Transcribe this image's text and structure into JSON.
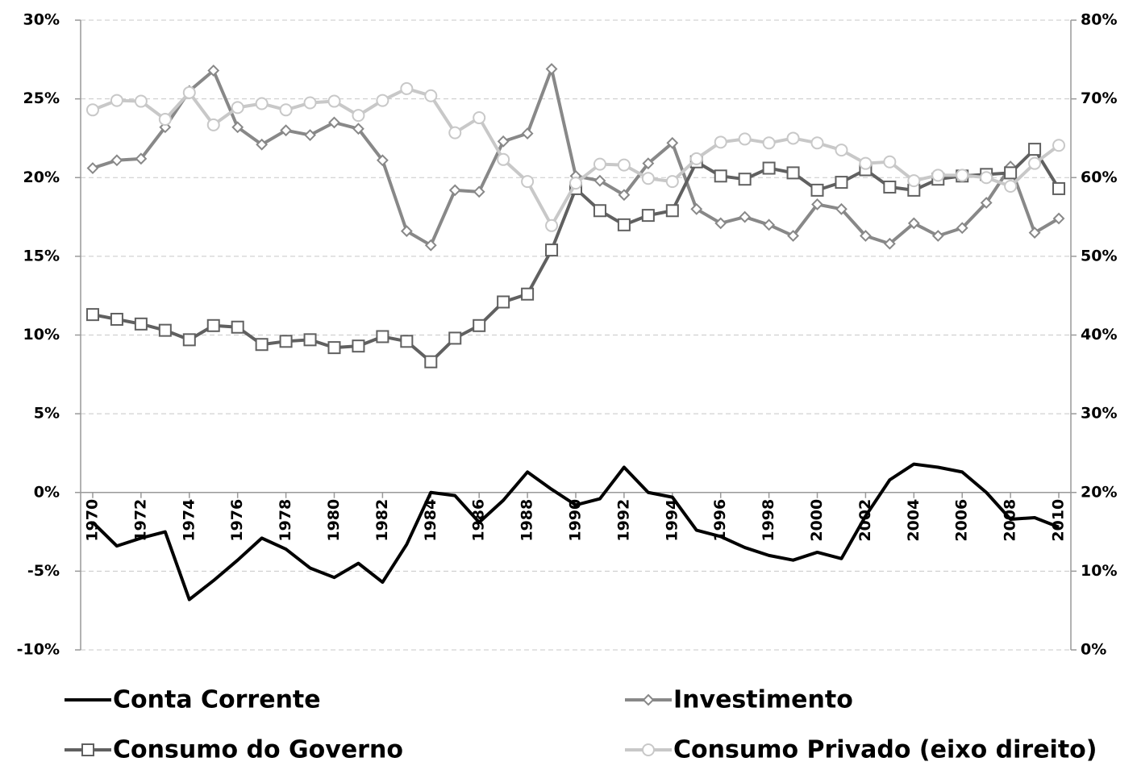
{
  "chart_data": {
    "type": "line",
    "x": [
      1970,
      1971,
      1972,
      1973,
      1974,
      1975,
      1976,
      1977,
      1978,
      1979,
      1980,
      1981,
      1982,
      1983,
      1984,
      1985,
      1986,
      1987,
      1988,
      1989,
      1990,
      1991,
      1992,
      1993,
      1994,
      1995,
      1996,
      1997,
      1998,
      1999,
      2000,
      2001,
      2002,
      2003,
      2004,
      2005,
      2006,
      2007,
      2008,
      2009,
      2010
    ],
    "xlim": [
      1969.5,
      2010.5
    ],
    "xticks": [
      1970,
      1972,
      1974,
      1976,
      1978,
      1980,
      1982,
      1984,
      1986,
      1988,
      1990,
      1992,
      1994,
      1996,
      1998,
      2000,
      2002,
      2004,
      2006,
      2008,
      2010
    ],
    "ylim": [
      -10,
      30
    ],
    "yticks": [
      {
        "value": -10,
        "label": "-10%"
      },
      {
        "value": -5,
        "label": "-5%"
      },
      {
        "value": 0,
        "label": "0%"
      },
      {
        "value": 5,
        "label": "5%"
      },
      {
        "value": 10,
        "label": "10%"
      },
      {
        "value": 15,
        "label": "15%"
      },
      {
        "value": 20,
        "label": "20%"
      },
      {
        "value": 25,
        "label": "25%"
      },
      {
        "value": 30,
        "label": "30%"
      }
    ],
    "y2lim": [
      0,
      80
    ],
    "y2ticks": [
      {
        "value": 0,
        "label": "0%"
      },
      {
        "value": 10,
        "label": "10%"
      },
      {
        "value": 20,
        "label": "20%"
      },
      {
        "value": 30,
        "label": "30%"
      },
      {
        "value": 40,
        "label": "40%"
      },
      {
        "value": 50,
        "label": "50%"
      },
      {
        "value": 60,
        "label": "60%"
      },
      {
        "value": 70,
        "label": "70%"
      },
      {
        "value": 80,
        "label": "80%"
      }
    ],
    "grid": true,
    "legend": "bottom",
    "series": [
      {
        "name": "Conta Corrente",
        "color": "#000000",
        "marker": "none",
        "values": [
          -1.9,
          -3.4,
          -2.9,
          -2.5,
          -6.8,
          -5.6,
          -4.3,
          -2.9,
          -3.6,
          -4.8,
          -5.4,
          -4.5,
          -5.7,
          -3.3,
          0,
          -0.2,
          -1.9,
          -0.5,
          1.3,
          0.2,
          -0.8,
          -0.4,
          1.6,
          0,
          -0.3,
          -2.4,
          -2.8,
          -3.5,
          -4.0,
          -4.3,
          -3.8,
          -4.2,
          -1.5,
          0.8,
          1.8,
          1.6,
          1.3,
          0,
          -1.7,
          -1.6,
          -2.2
        ]
      },
      {
        "name": "Investimento",
        "color": "#888888",
        "marker": "diamond",
        "values": [
          20.6,
          21.1,
          21.2,
          23.2,
          25.5,
          26.8,
          23.2,
          22.1,
          23.0,
          22.7,
          23.5,
          23.1,
          21.1,
          16.6,
          15.7,
          19.2,
          19.1,
          22.3,
          22.8,
          26.9,
          20.1,
          19.8,
          18.9,
          20.9,
          22.2,
          18.0,
          17.1,
          17.5,
          17.0,
          16.3,
          18.3,
          18.0,
          16.3,
          15.8,
          17.1,
          16.3,
          16.8,
          18.4,
          20.7,
          16.5,
          17.4
        ]
      },
      {
        "name": "Consumo do Governo",
        "color": "#606060",
        "marker": "square",
        "values": [
          11.3,
          11.0,
          10.7,
          10.3,
          9.7,
          10.6,
          10.5,
          9.4,
          9.6,
          9.7,
          9.2,
          9.3,
          9.9,
          9.6,
          8.3,
          9.8,
          10.6,
          12.1,
          12.6,
          15.4,
          19.3,
          17.9,
          17.0,
          17.6,
          17.9,
          21.0,
          20.1,
          19.9,
          20.6,
          20.3,
          19.2,
          19.7,
          20.5,
          19.4,
          19.2,
          19.9,
          20.1,
          20.2,
          20.3,
          21.8,
          19.3
        ]
      },
      {
        "name": "Consumo Privado (eixo direito)",
        "color": "#c8c8c8",
        "marker": "circle",
        "axis": "y2",
        "values": [
          68.6,
          69.8,
          69.7,
          67.4,
          70.8,
          66.7,
          68.9,
          69.4,
          68.6,
          69.5,
          69.7,
          67.9,
          69.8,
          71.3,
          70.4,
          65.7,
          67.6,
          62.3,
          59.5,
          53.9,
          59.3,
          61.7,
          61.6,
          59.9,
          59.5,
          62.4,
          64.5,
          64.9,
          64.4,
          65.0,
          64.4,
          63.5,
          61.8,
          62.0,
          59.6,
          60.3,
          60.3,
          60.0,
          58.9,
          61.8,
          64.1
        ]
      }
    ]
  }
}
